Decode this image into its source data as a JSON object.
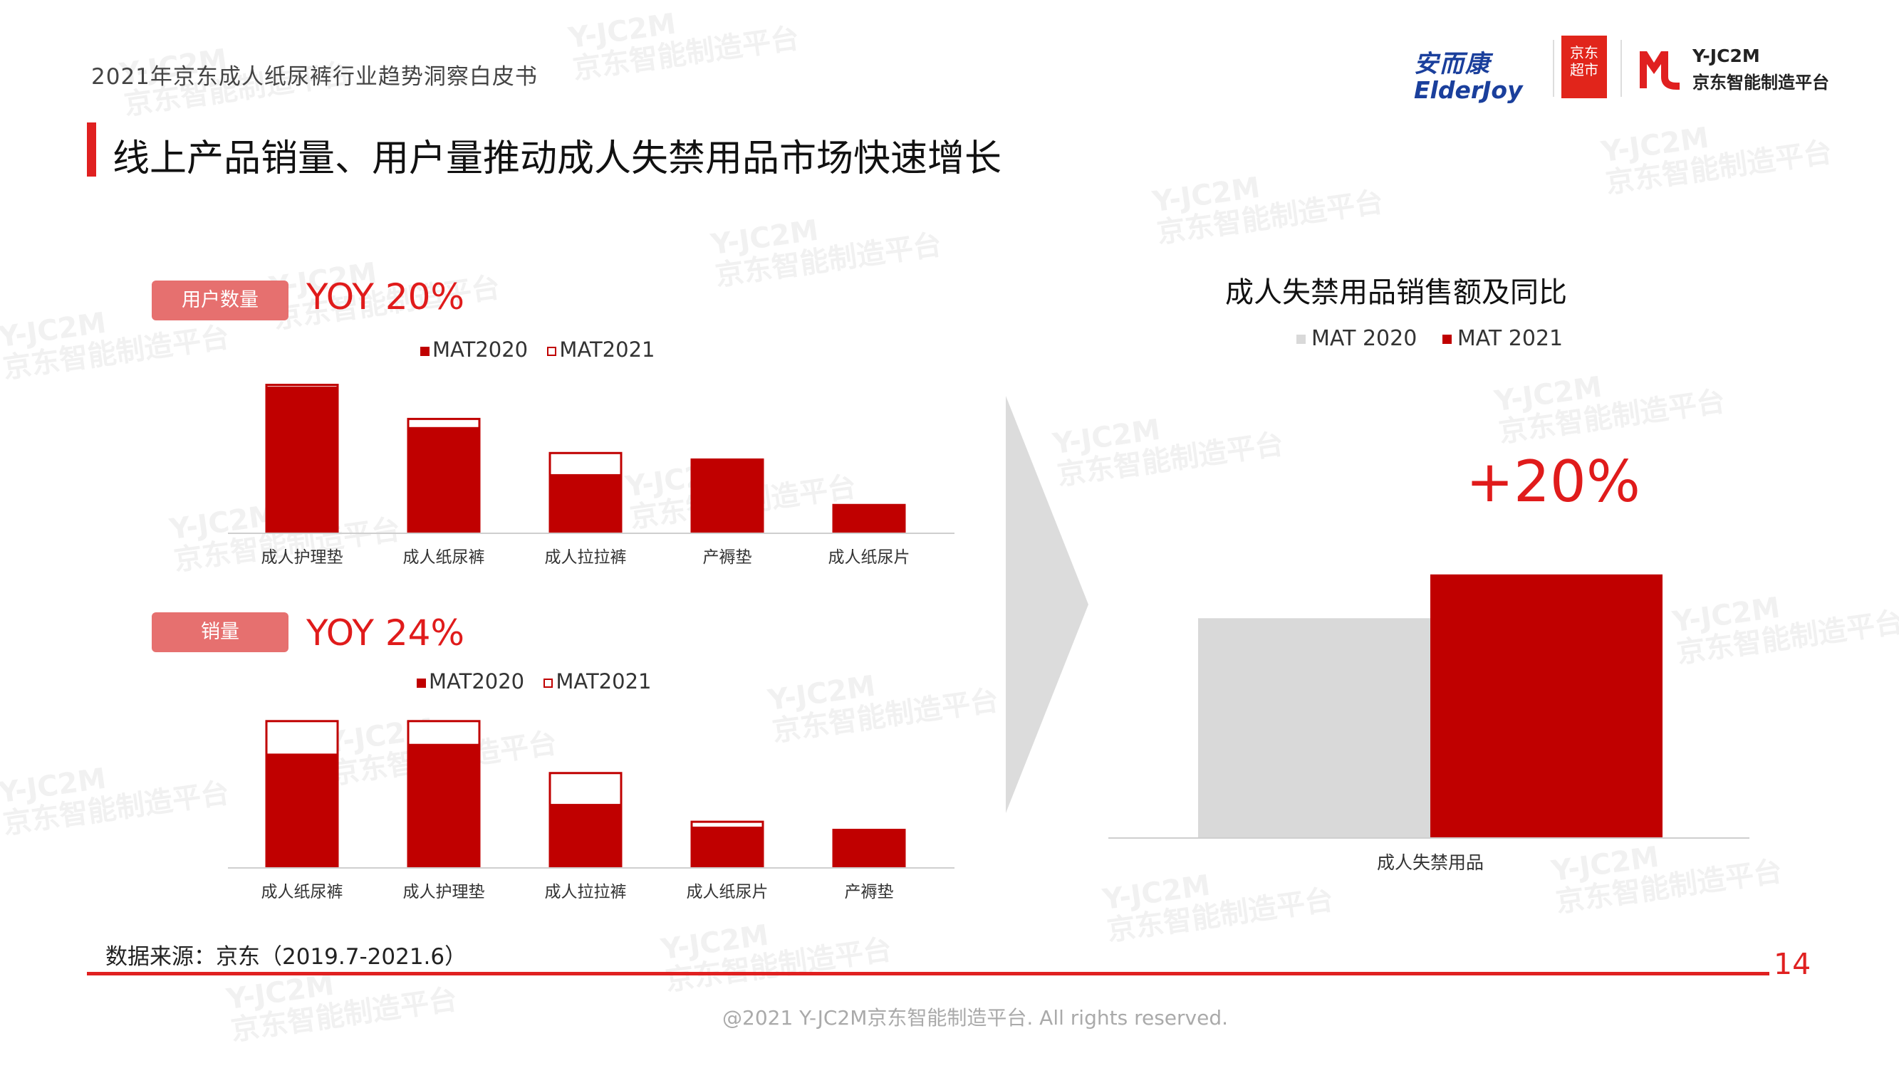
{
  "header": {
    "doc_title": "2021年京东成人纸尿裤行业趋势洞察白皮书",
    "main_title": "线上产品销量、用户量推动成人失禁用品市场快速增长"
  },
  "logos": {
    "anerkang_cn": "安而康",
    "anerkang_en": "ElderJoy",
    "jd_line1": "京东",
    "jd_line2": "超市",
    "yjc_line1": "Y-JC2M",
    "yjc_line2": "京东智能制造平台"
  },
  "watermark": {
    "line1": "Y-JC2M",
    "line2": "京东智能制造平台"
  },
  "panel_users": {
    "pill": "用户数量",
    "yoy": "YOY 20%",
    "legend_2020": "MAT2020",
    "legend_2021": "MAT2021"
  },
  "panel_sales": {
    "pill": "销量",
    "yoy": "YOY 24%",
    "legend_2020": "MAT2020",
    "legend_2021": "MAT2021"
  },
  "right_panel": {
    "title": "成人失禁用品销售额及同比",
    "legend_2020": "MAT 2020",
    "legend_2021": "MAT 2021",
    "yoy": "+20%"
  },
  "colors": {
    "accent": "#e02020",
    "bar_red": "#c00000",
    "bar_grey": "#d9d9d9",
    "pill": "#e6706f"
  },
  "chart_data": [
    {
      "type": "bar",
      "title": "用户数量",
      "categories": [
        "成人护理垫",
        "成人纸尿裤",
        "成人拉拉裤",
        "产褥垫",
        "成人纸尿片"
      ],
      "series": [
        {
          "name": "MAT2020",
          "values": [
            90,
            65,
            36,
            45,
            17
          ]
        },
        {
          "name": "MAT2021",
          "values": [
            91,
            70,
            49,
            45,
            17
          ]
        }
      ],
      "ylim": [
        0,
        100
      ]
    },
    {
      "type": "bar",
      "title": "销量",
      "categories": [
        "成人纸尿裤",
        "成人护理垫",
        "成人拉拉裤",
        "成人纸尿片",
        "产褥垫"
      ],
      "series": [
        {
          "name": "MAT2020",
          "values": [
            70,
            76,
            39,
            25,
            23
          ]
        },
        {
          "name": "MAT2021",
          "values": [
            90,
            90,
            58,
            28,
            23
          ]
        }
      ],
      "ylim": [
        0,
        100
      ]
    },
    {
      "type": "bar",
      "title": "成人失禁用品销售额及同比",
      "categories": [
        "成人失禁用品"
      ],
      "series": [
        {
          "name": "MAT 2020",
          "values": [
            100
          ]
        },
        {
          "name": "MAT 2021",
          "values": [
            120
          ]
        }
      ],
      "ylim": [
        0,
        130
      ],
      "annotations": [
        "+20%"
      ]
    }
  ],
  "footer": {
    "source": "数据来源：京东（2019.7-2021.6）",
    "page_number": "14",
    "copyright": "@2021 Y-JC2M京东智能制造平台. All rights reserved."
  }
}
